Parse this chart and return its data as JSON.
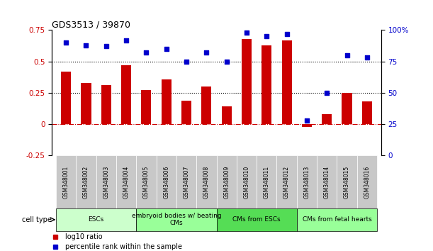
{
  "title": "GDS3513 / 39870",
  "samples": [
    "GSM348001",
    "GSM348002",
    "GSM348003",
    "GSM348004",
    "GSM348005",
    "GSM348006",
    "GSM348007",
    "GSM348008",
    "GSM348009",
    "GSM348010",
    "GSM348011",
    "GSM348012",
    "GSM348013",
    "GSM348014",
    "GSM348015",
    "GSM348016"
  ],
  "log10_ratio": [
    0.42,
    0.33,
    0.31,
    0.47,
    0.27,
    0.36,
    0.19,
    0.3,
    0.14,
    0.68,
    0.63,
    0.67,
    -0.02,
    0.08,
    0.25,
    0.18
  ],
  "percentile_rank": [
    90,
    88,
    87,
    92,
    82,
    85,
    75,
    82,
    75,
    98,
    95,
    97,
    28,
    50,
    80,
    78
  ],
  "bar_color": "#cc0000",
  "dot_color": "#0000cc",
  "ylim_left": [
    -0.25,
    0.75
  ],
  "ylim_right": [
    0,
    100
  ],
  "yticks_left": [
    -0.25,
    0.0,
    0.25,
    0.5,
    0.75
  ],
  "yticks_right": [
    0,
    25,
    50,
    75,
    100
  ],
  "ytick_labels_left": [
    "-0.25",
    "0",
    "0.25",
    "0.5",
    "0.75"
  ],
  "ytick_labels_right": [
    "0",
    "25",
    "50",
    "75",
    "100%"
  ],
  "hlines": [
    0.0,
    0.25,
    0.5
  ],
  "hline_styles": [
    "dashdot",
    "dotted",
    "dotted"
  ],
  "hline_colors": [
    "#cc0000",
    "#000000",
    "#000000"
  ],
  "cell_type_groups": [
    {
      "label": "ESCs",
      "start": 0,
      "end": 3,
      "color": "#ccffcc"
    },
    {
      "label": "embryoid bodies w/ beating\nCMs",
      "start": 4,
      "end": 7,
      "color": "#99ff99"
    },
    {
      "label": "CMs from ESCs",
      "start": 8,
      "end": 11,
      "color": "#55dd55"
    },
    {
      "label": "CMs from fetal hearts",
      "start": 12,
      "end": 15,
      "color": "#99ff99"
    }
  ],
  "cell_type_label": "cell type",
  "legend_red_label": "log10 ratio",
  "legend_blue_label": "percentile rank within the sample",
  "tick_label_color_left": "#cc0000",
  "tick_label_color_right": "#0000cc",
  "background_color": "#ffffff",
  "xticklabel_bg_color": "#c8c8c8"
}
